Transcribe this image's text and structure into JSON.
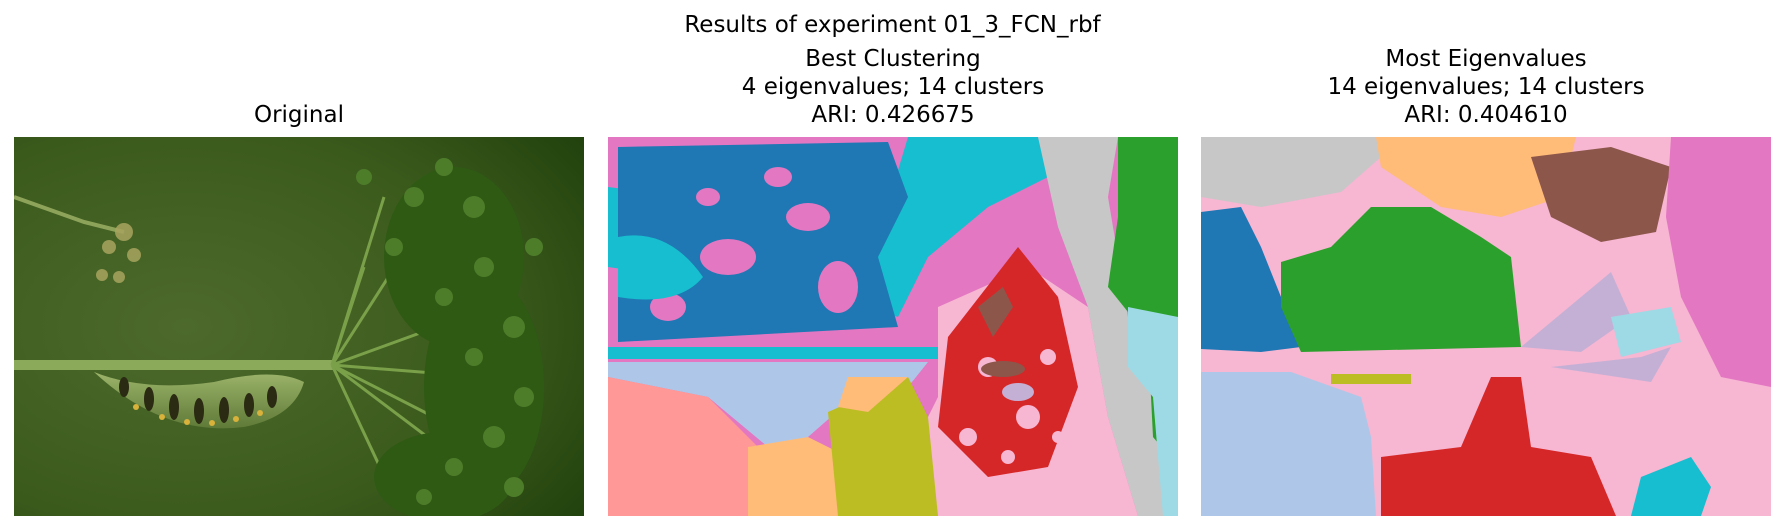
{
  "figure": {
    "suptitle": "Results of experiment 01_3_FCN_rbf",
    "panels": [
      {
        "id": "original",
        "title_lines": [
          "Original"
        ]
      },
      {
        "id": "best",
        "title_lines": [
          "Best Clustering",
          "4 eigenvalues; 14 clusters",
          "ARI: 0.426675"
        ]
      },
      {
        "id": "most",
        "title_lines": [
          "Most Eigenvalues",
          "14 eigenvalues; 14 clusters",
          "ARI: 0.404610"
        ]
      }
    ]
  },
  "colors": {
    "tab_blue": "#1f77b4",
    "tab_pink": "#e377c2",
    "tab_cyan": "#17becf",
    "tab_lightgray": "#c7c7c7",
    "tab_green": "#2ca02c",
    "tab_lightcyan": "#9edae5",
    "tab_red": "#d62728",
    "tab_brown": "#8c564b",
    "tab_lavender": "#c5b0d5",
    "tab_lightpink": "#f7b6d2",
    "tab_salmon": "#ff9896",
    "tab_lightblue": "#aec7e8",
    "tab_peach": "#ffbb78",
    "tab_olive": "#bcbd22",
    "photo_bg": "#3b5f1e"
  }
}
